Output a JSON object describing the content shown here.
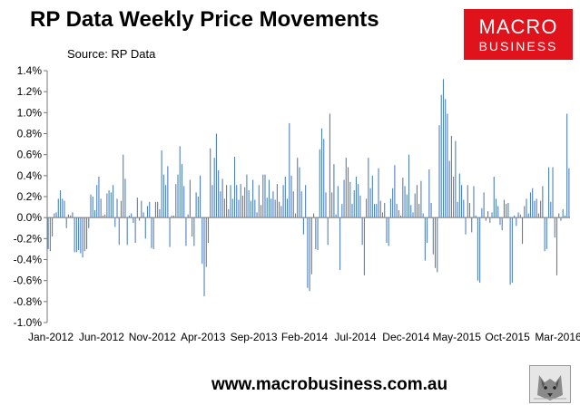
{
  "header": {
    "title": "RP Data Weekly Price Movements",
    "source": "Source: RP Data"
  },
  "logo": {
    "line1": "MACRO",
    "line2": "BUSINESS"
  },
  "footer": {
    "url": "www.macrobusiness.com.au"
  },
  "icons": {
    "mascot": "wolf-icon"
  },
  "colors": {
    "bars": "#4f81bd",
    "logo_bg": "#e0121b"
  },
  "chart_data": {
    "type": "bar",
    "title": "RP Data Weekly Price Movements",
    "xlabel": "",
    "ylabel": "",
    "ylim": [
      -1.0,
      1.4
    ],
    "y_ticks": [
      "-1.0%",
      "-0.8%",
      "-0.6%",
      "-0.4%",
      "-0.2%",
      "0.0%",
      "0.2%",
      "0.4%",
      "0.6%",
      "0.8%",
      "1.0%",
      "1.2%",
      "1.4%"
    ],
    "x_ticks": [
      "Jan-2012",
      "Jun-2012",
      "Nov-2012",
      "Apr-2013",
      "Sep-2013",
      "Feb-2014",
      "Jul-2014",
      "Dec-2014",
      "May-2015",
      "Oct-2015",
      "Mar-2016"
    ],
    "grid": false,
    "legend": "none",
    "series": [
      {
        "values": [
          -0.3,
          -0.32,
          -0.18,
          0.04,
          0.05,
          0.18,
          0.26,
          0.18,
          0.16,
          -0.1,
          0.03,
          0.02,
          0.05,
          -0.33,
          -0.33,
          -0.31,
          -0.34,
          -0.38,
          -0.32,
          -0.3,
          -0.1,
          0.22,
          0.2,
          0.07,
          0.31,
          0.39,
          0.18,
          0.02,
          0.03,
          0.23,
          0.26,
          0.24,
          0.31,
          -0.09,
          0.18,
          -0.26,
          0.16,
          0.6,
          0.37,
          -0.26,
          0.02,
          0.04,
          -0.05,
          -0.24,
          0.19,
          -0.03,
          0.16,
          0.05,
          -0.2,
          0.11,
          0.15,
          -0.29,
          -0.3,
          0.15,
          0.15,
          0.08,
          0.64,
          0.41,
          0.31,
          0.49,
          -0.28,
          0.02,
          0.02,
          0.32,
          0.41,
          0.68,
          0.51,
          0.3,
          -0.27,
          0.03,
          0.36,
          -0.18,
          -0.27,
          0.24,
          0.2,
          0.4,
          -0.44,
          -0.75,
          -0.47,
          -0.24,
          0.66,
          0.31,
          0.57,
          0.8,
          0.45,
          0.25,
          0.37,
          0.18,
          0.31,
          0.08,
          0.31,
          0.18,
          0.58,
          0.31,
          0.17,
          0.32,
          0.21,
          0.29,
          0.41,
          0.26,
          0.16,
          0.36,
          0.17,
          0.05,
          0.31,
          0.12,
          0.41,
          0.41,
          0.19,
          0.36,
          0.18,
          0.25,
          0.17,
          0.32,
          0.15,
          0.11,
          0.31,
          0.39,
          0.18,
          0.9,
          0.4,
          0.25,
          0.04,
          0.57,
          0.48,
          0.25,
          -0.16,
          0.31,
          -0.67,
          -0.7,
          -0.54,
          0.04,
          -0.3,
          -0.31,
          0.65,
          0.85,
          0.75,
          0.24,
          -0.26,
          0.99,
          0.24,
          0.51,
          0.03,
          0.3,
          -0.5,
          0.13,
          0.36,
          0.57,
          0.48,
          0.34,
          0.13,
          0.26,
          0.39,
          0.32,
          0.21,
          -0.26,
          -0.55,
          0.18,
          0.57,
          0.28,
          0.4,
          0.13,
          0.13,
          0.47,
          0.16,
          0.05,
          0.14,
          -0.24,
          -0.27,
          0.18,
          0.28,
          0.5,
          0.13,
          0.07,
          0.02,
          0.38,
          0.3,
          0.22,
          0.6,
          0.12,
          0.05,
          0.23,
          0.31,
          0.13,
          0.35,
          0.04,
          -0.41,
          -0.24,
          0.46,
          0.14,
          -0.35,
          -0.48,
          -0.52,
          0.88,
          1.17,
          1.32,
          1.13,
          0.99,
          0.54,
          0.78,
          0.39,
          0.73,
          0.15,
          0.42,
          0.31,
          0.17,
          -0.16,
          0.31,
          0.14,
          -0.14,
          0.3,
          0.02,
          -0.6,
          -0.62,
          0.09,
          0.24,
          -0.03,
          0.06,
          -0.05,
          0.05,
          0.39,
          0.18,
          0.11,
          -0.07,
          -0.12,
          0.17,
          0.13,
          0.14,
          -0.64,
          -0.62,
          0.02,
          -0.08,
          0.05,
          0.03,
          -0.25,
          0.11,
          0.18,
          0.04,
          0.24,
          0.28,
          0.16,
          0.18,
          0.04,
          0.16,
          0.3,
          -0.32,
          -0.3,
          0.48,
          0.15,
          0.48,
          -0.19,
          -0.55,
          0.04,
          -0.03,
          0.08,
          0.02,
          0.99,
          0.47
        ]
      }
    ]
  }
}
